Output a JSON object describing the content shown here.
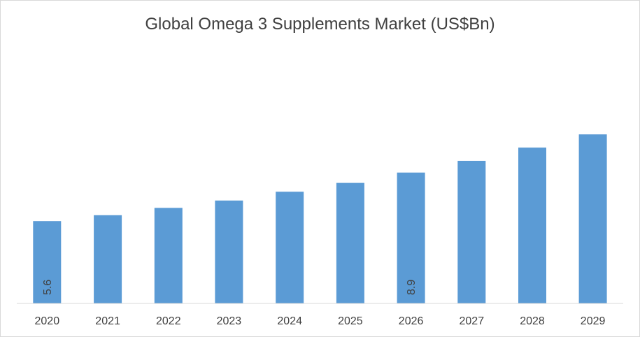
{
  "chart_data": {
    "type": "bar",
    "title": "Global Omega 3 Supplements Market (US$Bn)",
    "categories": [
      "2020",
      "2021",
      "2022",
      "2023",
      "2024",
      "2025",
      "2026",
      "2027",
      "2028",
      "2029"
    ],
    "values": [
      5.6,
      6.0,
      6.5,
      7.0,
      7.6,
      8.2,
      8.9,
      9.7,
      10.6,
      11.5
    ],
    "data_labels": [
      "5.6",
      "",
      "",
      "",
      "",
      "",
      "8.9",
      "",
      "",
      ""
    ],
    "ylim": [
      0,
      16.5
    ],
    "xlabel": "",
    "ylabel": "",
    "grid": false,
    "legend": "none",
    "colors": {
      "bar": "#5b9bd5",
      "axis": "#d9d9d9",
      "text": "#404040"
    }
  }
}
